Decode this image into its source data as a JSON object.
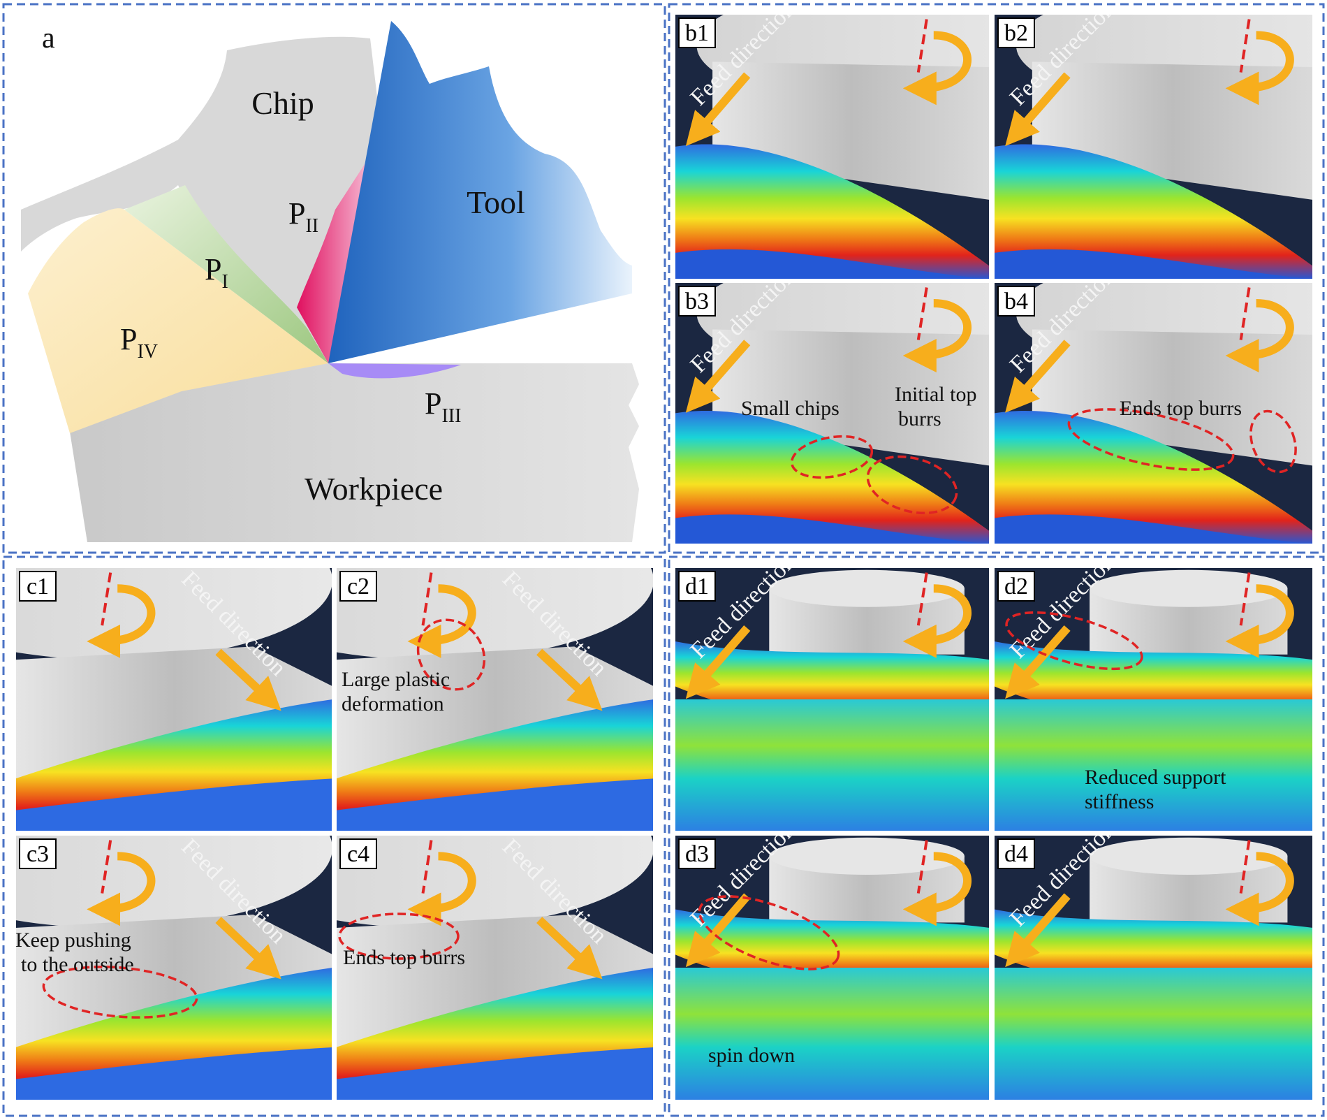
{
  "panel_a": {
    "label": "a",
    "chip": "Chip",
    "tool": "Tool",
    "workpiece": "Workpiece",
    "zones": [
      {
        "base": "P",
        "sub": "I"
      },
      {
        "base": "P",
        "sub": "II"
      },
      {
        "base": "P",
        "sub": "III"
      },
      {
        "base": "P",
        "sub": "IV"
      }
    ],
    "colors": {
      "tool": "#2f73c9",
      "zone_I": "#a8d08d",
      "zone_II": "#ec2b7f",
      "zone_III": "#9d7cf4",
      "zone_IV": "#fbe3a6"
    }
  },
  "feed_label": "Feed direction",
  "panels": [
    {
      "tag": "b1",
      "notes": []
    },
    {
      "tag": "b2",
      "notes": []
    },
    {
      "tag": "b3",
      "notes": [
        "Small chips",
        "Initial top",
        "burrs"
      ]
    },
    {
      "tag": "b4",
      "notes": [
        "Ends top burrs"
      ]
    },
    {
      "tag": "c1",
      "notes": []
    },
    {
      "tag": "c2",
      "notes": [
        "Large plastic",
        "deformation"
      ]
    },
    {
      "tag": "c3",
      "notes": [
        "Keep pushing",
        "to the outside"
      ]
    },
    {
      "tag": "c4",
      "notes": [
        "Ends top burrs"
      ]
    },
    {
      "tag": "d1",
      "notes": []
    },
    {
      "tag": "d2",
      "notes": [
        "Reduced support",
        "stiffness"
      ]
    },
    {
      "tag": "d3",
      "notes": [
        "spin down"
      ]
    },
    {
      "tag": "d4",
      "notes": []
    }
  ]
}
